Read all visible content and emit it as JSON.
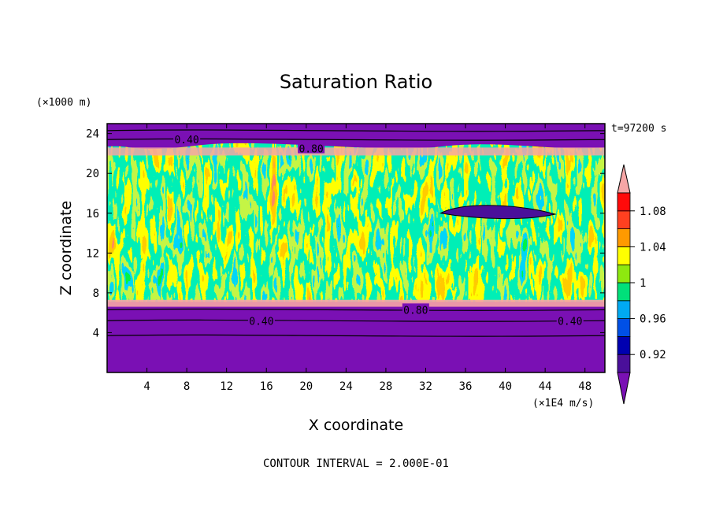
{
  "chart_data": {
    "type": "heatmap",
    "title": "Saturation Ratio",
    "xlabel": "X coordinate",
    "ylabel": "Z coordinate",
    "x_unit": "(×1E4 m/s)",
    "y_unit": "(×1000 m)",
    "time_label": "t=97200 s",
    "footer": "CONTOUR INTERVAL = 2.000E-01",
    "xlim": [
      0,
      50
    ],
    "ylim": [
      0,
      25
    ],
    "x_ticks": [
      4,
      8,
      12,
      16,
      20,
      24,
      28,
      32,
      36,
      40,
      44,
      48
    ],
    "y_ticks": [
      4,
      8,
      12,
      16,
      20,
      24
    ],
    "contour_labels": [
      {
        "text": "0.40",
        "x": 8,
        "z": 23.4
      },
      {
        "text": "0.80",
        "x": 20.5,
        "z": 22.5
      },
      {
        "text": "0.40",
        "x": 15.5,
        "z": 5.2
      },
      {
        "text": "0.80",
        "x": 31,
        "z": 6.3
      },
      {
        "text": "0.40",
        "x": 46.5,
        "z": 5.2
      }
    ],
    "colorbar": {
      "labels": [
        "1.08",
        "1.04",
        "1",
        "0.96",
        "0.92"
      ],
      "bounds": [
        0.9,
        0.92,
        0.94,
        0.96,
        0.98,
        1.0,
        1.02,
        1.04,
        1.06,
        1.08,
        1.1
      ],
      "colors": [
        "#4a0f9a",
        "#0000b0",
        "#0050e6",
        "#00aaf2",
        "#00e07a",
        "#8ee80f",
        "#ffff00",
        "#ff9a00",
        "#ff4020",
        "#ff0a0a"
      ],
      "under_color": "#7a10b4",
      "over_color": "#f6a6a6"
    }
  }
}
